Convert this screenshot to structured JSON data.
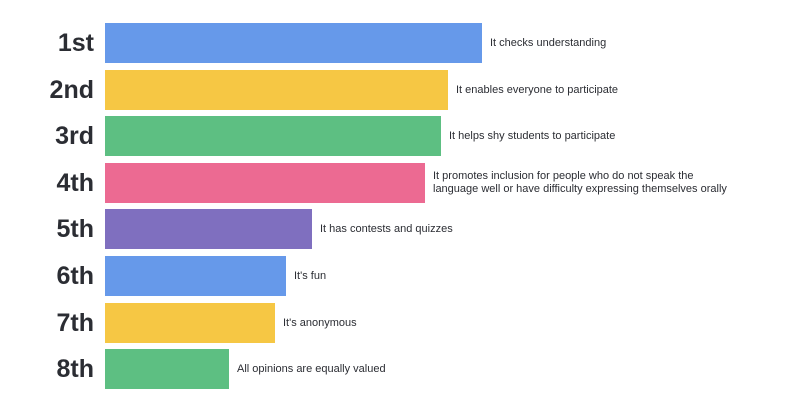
{
  "colors": {
    "blue": "#6699ea",
    "yellow": "#f6c744",
    "green": "#5dbf82",
    "pink": "#ec6a92",
    "purple": "#7f6fbf"
  },
  "chart_data": {
    "type": "bar",
    "orientation": "horizontal",
    "title": "",
    "xlabel": "",
    "ylabel": "",
    "grid": false,
    "categories": [
      "1st",
      "2nd",
      "3rd",
      "4th",
      "5th",
      "6th",
      "7th",
      "8th"
    ],
    "values": [
      100,
      91,
      89,
      85,
      55,
      48,
      45,
      33
    ],
    "xlim": [
      0,
      100
    ],
    "bars": [
      {
        "rank": "1st",
        "value": 100,
        "color": "blue",
        "label_lines": [
          "It checks understanding"
        ]
      },
      {
        "rank": "2nd",
        "value": 91,
        "color": "yellow",
        "label_lines": [
          "It enables everyone to participate"
        ]
      },
      {
        "rank": "3rd",
        "value": 89,
        "color": "green",
        "label_lines": [
          "It helps shy students to participate"
        ]
      },
      {
        "rank": "4th",
        "value": 85,
        "color": "pink",
        "label_lines": [
          "It promotes inclusion for people who do not speak the",
          "language well or have difficulty expressing themselves orally"
        ]
      },
      {
        "rank": "5th",
        "value": 55,
        "color": "purple",
        "label_lines": [
          "It has contests and quizzes"
        ]
      },
      {
        "rank": "6th",
        "value": 48,
        "color": "blue",
        "label_lines": [
          "It's fun"
        ]
      },
      {
        "rank": "7th",
        "value": 45,
        "color": "yellow",
        "label_lines": [
          "It's anonymous"
        ]
      },
      {
        "rank": "8th",
        "value": 33,
        "color": "green",
        "label_lines": [
          "All opinions are equally valued"
        ]
      }
    ]
  }
}
